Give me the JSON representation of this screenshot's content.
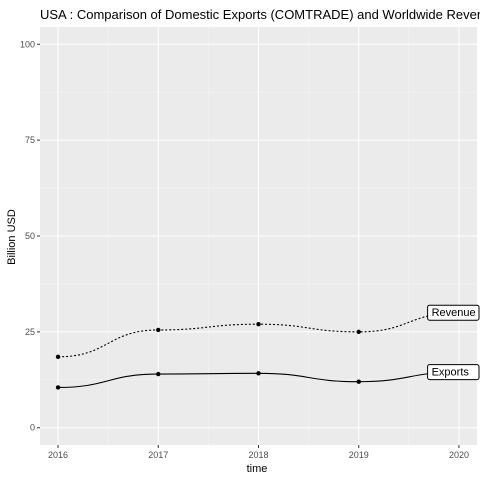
{
  "chart_data": {
    "type": "line",
    "title": "USA : Comparison of Domestic Exports (COMTRADE) and Worldwide Revenue",
    "xlabel": "time",
    "ylabel": "Billion USD",
    "x": [
      2016,
      2017,
      2018,
      2019,
      2020
    ],
    "xlim": [
      2016,
      2020
    ],
    "ylim": [
      0,
      100
    ],
    "y_ticks": [
      0,
      25,
      50,
      75,
      100
    ],
    "x_ticks": [
      2016,
      2017,
      2018,
      2019,
      2020
    ],
    "grid": true,
    "legend": "none",
    "series": [
      {
        "name": "Revenue",
        "values": [
          18.5,
          25.5,
          27.0,
          25.0,
          30.0
        ],
        "line_style": "dotted",
        "color": "#000000"
      },
      {
        "name": "Exports",
        "values": [
          10.5,
          14.0,
          14.2,
          12.0,
          14.5
        ],
        "line_style": "solid",
        "color": "#000000"
      }
    ],
    "colors": {
      "panel_background": "#ebebeb",
      "grid_major": "#ffffff",
      "grid_minor": "#f5f5f5"
    }
  }
}
